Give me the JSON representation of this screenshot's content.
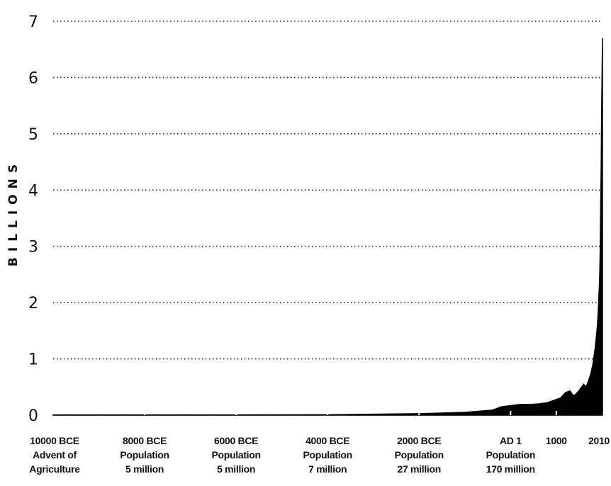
{
  "chart_data": {
    "type": "area",
    "ylabel": "BILLIONS",
    "xlabel": "",
    "title": "",
    "ylim": [
      0,
      7
    ],
    "xlim": [
      -10000,
      2010
    ],
    "yticks": [
      {
        "value": 0,
        "label": "0"
      },
      {
        "value": 1,
        "label": "1"
      },
      {
        "value": 2,
        "label": "2"
      },
      {
        "value": 3,
        "label": "3"
      },
      {
        "value": 4,
        "label": "4"
      },
      {
        "value": 5,
        "label": "5"
      },
      {
        "value": 6,
        "label": "6"
      },
      {
        "value": 7,
        "label": "7"
      }
    ],
    "xticks": [
      {
        "value": -10000,
        "lines": [
          "10000 BCE",
          "Advent of",
          "Agriculture"
        ]
      },
      {
        "value": -8000,
        "lines": [
          "8000 BCE",
          "Population",
          "5 million"
        ]
      },
      {
        "value": -6000,
        "lines": [
          "6000 BCE",
          "Population",
          "5 million"
        ]
      },
      {
        "value": -4000,
        "lines": [
          "4000 BCE",
          "Population",
          "7 million"
        ]
      },
      {
        "value": -2000,
        "lines": [
          "2000 BCE",
          "Population",
          "27 million"
        ]
      },
      {
        "value": 0,
        "lines": [
          "AD 1",
          "Population",
          "170 million"
        ]
      },
      {
        "value": 1000,
        "lines": [
          "1000"
        ]
      },
      {
        "value": 2010,
        "lines": [
          "2010"
        ]
      }
    ],
    "grid": "horizontal dotted",
    "fill_color": "#000000",
    "x": [
      -10000,
      -8000,
      -6000,
      -4000,
      -2000,
      -1000,
      -400,
      -200,
      0,
      200,
      400,
      600,
      800,
      1000,
      1100,
      1200,
      1300,
      1350,
      1400,
      1500,
      1600,
      1650,
      1700,
      1750,
      1800,
      1850,
      1900,
      1920,
      1940,
      1950,
      1960,
      1970,
      1980,
      1990,
      2000,
      2010
    ],
    "values": [
      0.005,
      0.005,
      0.005,
      0.007,
      0.027,
      0.05,
      0.09,
      0.15,
      0.17,
      0.19,
      0.19,
      0.2,
      0.22,
      0.28,
      0.31,
      0.4,
      0.43,
      0.37,
      0.35,
      0.44,
      0.55,
      0.5,
      0.6,
      0.72,
      0.9,
      1.2,
      1.6,
      1.9,
      2.3,
      2.5,
      3.0,
      3.7,
      4.4,
      5.3,
      6.1,
      6.7
    ]
  }
}
